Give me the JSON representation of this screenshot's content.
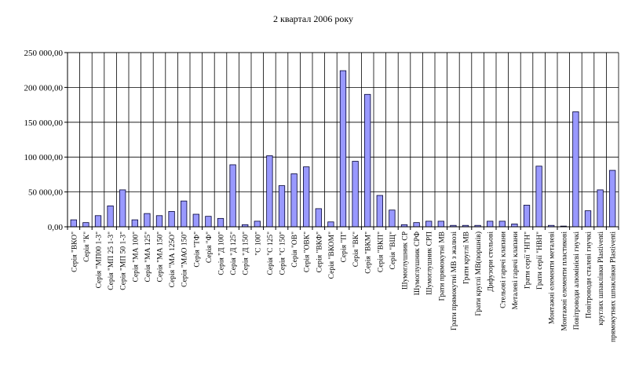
{
  "chart_data": {
    "type": "bar",
    "title": "2 квартал 2006 року",
    "xlabel": "",
    "ylabel": "",
    "ylim": [
      0,
      250000
    ],
    "ytick_values": [
      0,
      50000,
      100000,
      150000,
      200000,
      250000
    ],
    "ytick_labels": [
      "0,00",
      "50 000,00",
      "100 000,00",
      "150 000,00",
      "200 000,00",
      "250 000,00"
    ],
    "grid": true,
    "legend": "none",
    "bar_color": "#9999ff",
    "categories": [
      "Серія \"ВКО\"",
      "Серія \"К\"",
      "Серія \"МП00 1-3\"",
      "Серія \"МП 25 1-3\"",
      "Серія \"МП 50 1-3\"",
      "Серія \"МА 100\"",
      "Серія \"МА 125\"",
      "Серія \"МА 150\"",
      "Серія \"МА 125О\"",
      "Серія \"МАО 150\"",
      "Серія \"ТФ\"",
      "Серія \"Ф\"",
      "Серія \"Д 100\"",
      "Серія \"Д 125\"",
      "Серія \"Д 150\"",
      "\"С 100\"",
      "Серія \"С 125\"",
      "Серія \"С 150\"",
      "Серія \"ОВ\"",
      "Серія \"ОВК\"",
      "Серія \"ВКФ\"",
      "Серія \"ВКОМ\"",
      "Серія \"П\"",
      "Серія \"ВК\"",
      "Серія \"ВКМ\"",
      "Серія \"ВКП\"",
      "Серія \"ВЩ\"",
      "Шумоглушник СР",
      "Шумоглушник СРФ",
      "Шумоглушник СРП",
      "Грати прямокутні МВ",
      "Грати прямокутні МВ з жалюзі",
      "Грати круглі МВ",
      "Грати круглі МВ(поршнів)",
      "Дифузори стельові",
      "Стельові гарячі клапани",
      "Металеві гарячі клапани",
      "Грати серії \"НГН\"",
      "Грати серії \"НВН\"",
      "Монтажні елементи металеві",
      "Монтажні елементи пластикові",
      "Повітроводи алюмінієві гнучкі",
      "Повітроводи сталеві гнучкі",
      "круглих шпаклівки Plastiventi",
      "прямокутних шпаклівки Plastiventi"
    ],
    "values": [
      10000,
      6000,
      16000,
      30000,
      53000,
      10000,
      19000,
      16000,
      22000,
      37000,
      18000,
      15000,
      12000,
      89000,
      3000,
      8000,
      102000,
      59000,
      76000,
      86000,
      26000,
      7000,
      224000,
      94000,
      190000,
      45000,
      24000,
      3000,
      6000,
      8000,
      8000,
      2000,
      2000,
      2000,
      8000,
      8000,
      4000,
      31000,
      87000,
      2000,
      1000,
      165000,
      23000,
      53000,
      81000
    ]
  }
}
